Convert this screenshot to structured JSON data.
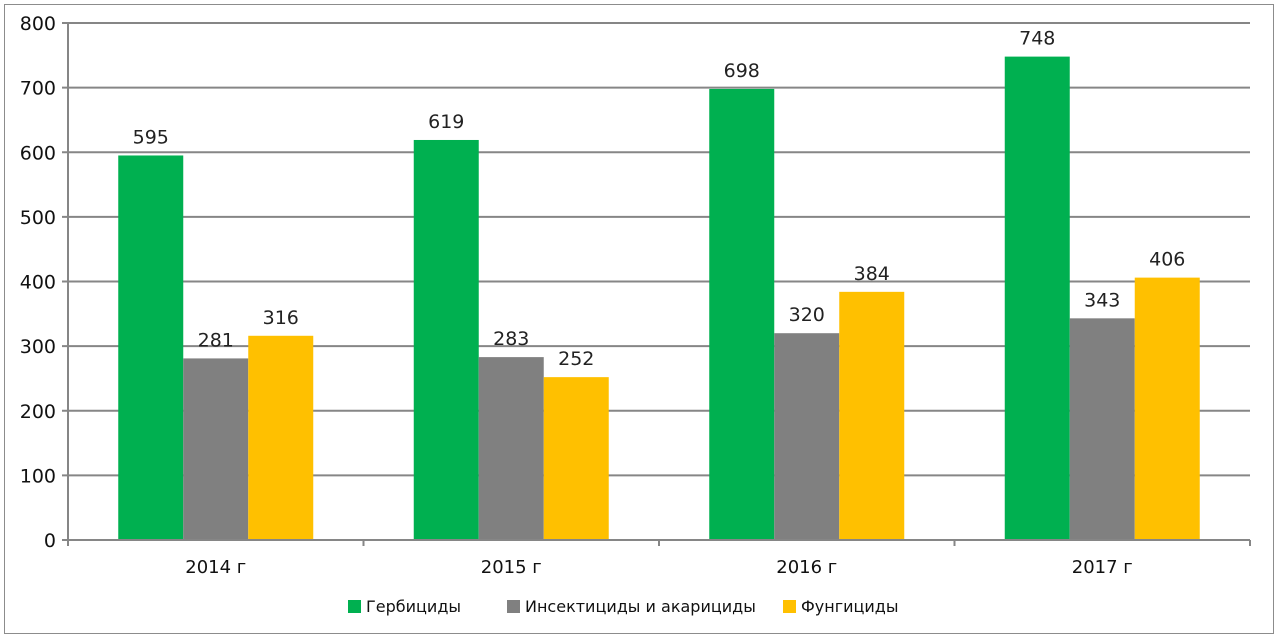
{
  "chart_data": {
    "type": "bar",
    "categories": [
      "2014 г",
      "2015 г",
      "2016 г",
      "2017 г"
    ],
    "series": [
      {
        "name": "Гербициды",
        "values": [
          595,
          619,
          698,
          748
        ],
        "color": "#00b050"
      },
      {
        "name": "Инсектициды и акарициды",
        "values": [
          281,
          283,
          320,
          343
        ],
        "color": "#808080"
      },
      {
        "name": "Фунгициды",
        "values": [
          316,
          252,
          384,
          406
        ],
        "color": "#ffc000"
      }
    ],
    "ylim": [
      0,
      800
    ],
    "yticks": [
      0,
      100,
      200,
      300,
      400,
      500,
      600,
      700,
      800
    ],
    "grid": true,
    "legend_position": "bottom",
    "data_labels": true
  }
}
